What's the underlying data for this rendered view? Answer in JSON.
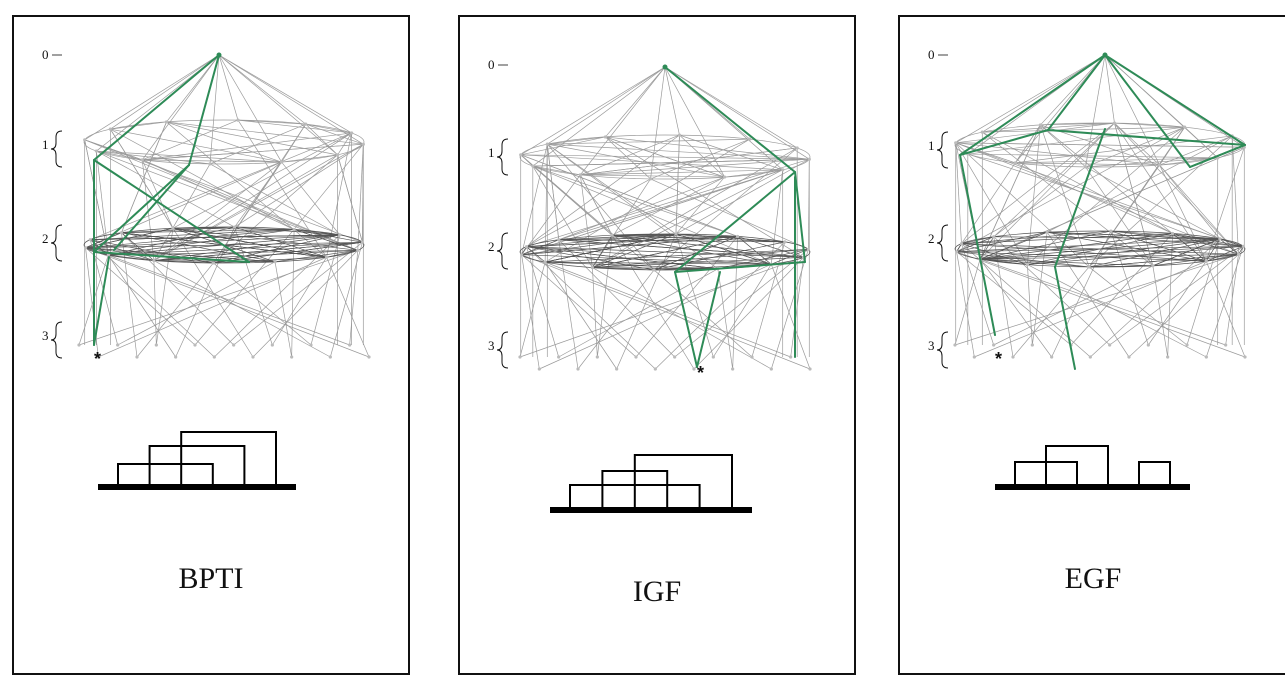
{
  "panels": [
    {
      "caption": "BPTI",
      "level_labels": [
        "0",
        "1",
        "2",
        "3"
      ],
      "marker": "*",
      "accent_color": "#2e8b57",
      "disulfide_loops": [
        [
          1,
          4
        ],
        [
          2,
          5
        ],
        [
          3,
          6
        ]
      ]
    },
    {
      "caption": "IGF",
      "level_labels": [
        "0",
        "1",
        "2",
        "3"
      ],
      "marker": "*",
      "accent_color": "#2e8b57",
      "disulfide_loops": [
        [
          1,
          5
        ],
        [
          2,
          4
        ],
        [
          3,
          6
        ]
      ]
    },
    {
      "caption": "EGF",
      "level_labels": [
        "0",
        "1",
        "2",
        "3"
      ],
      "marker": "*",
      "accent_color": "#2e8b57",
      "disulfide_loops": [
        [
          1,
          3
        ],
        [
          2,
          4
        ],
        [
          5,
          6
        ]
      ]
    }
  ]
}
